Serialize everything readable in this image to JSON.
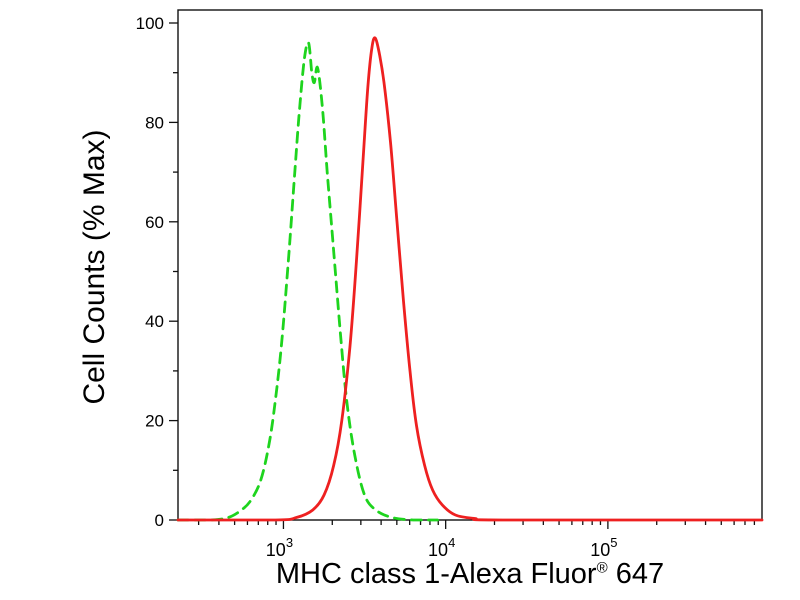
{
  "chart_data": {
    "type": "line",
    "title": "",
    "xlabel": "MHC class 1-Alexa Fluor® 647",
    "xlabel_base": "MHC class 1-Alexa Fluor",
    "xlabel_sup": "®",
    "xlabel_suffix": " 647",
    "ylabel": "Cell Counts (% Max)",
    "x_scale": "log10",
    "x_range_log": [
      2.35,
      5.95
    ],
    "ylim": [
      0,
      100
    ],
    "y_ticks": [
      0,
      20,
      40,
      60,
      80,
      100
    ],
    "y_minor_ticks": [
      10,
      30,
      50,
      70,
      90
    ],
    "x_major_ticks": [
      {
        "log": 3,
        "base": "10",
        "exp": "3"
      },
      {
        "log": 4,
        "base": "10",
        "exp": "4"
      },
      {
        "log": 5,
        "base": "10",
        "exp": "5"
      }
    ],
    "grid": false,
    "legend": "none",
    "colors": {
      "green_dashed": "#1ed41e",
      "red_solid": "#ee2020",
      "axis": "#111111"
    },
    "series": [
      {
        "id": "green-dashed-curve",
        "name": "green dashed histogram (negative/control population)",
        "color": "#1ed41e",
        "style": "dashed",
        "dash": "10 7",
        "peak_x": 1400,
        "peak_y": 96,
        "points": [
          [
            2.35,
            0
          ],
          [
            2.55,
            0
          ],
          [
            2.66,
            0.5
          ],
          [
            2.74,
            2
          ],
          [
            2.8,
            4
          ],
          [
            2.86,
            8
          ],
          [
            2.91,
            15
          ],
          [
            2.95,
            24
          ],
          [
            2.99,
            36
          ],
          [
            3.03,
            52
          ],
          [
            3.07,
            70
          ],
          [
            3.1,
            83
          ],
          [
            3.13,
            93
          ],
          [
            3.155,
            96
          ],
          [
            3.175,
            90
          ],
          [
            3.19,
            88
          ],
          [
            3.21,
            91
          ],
          [
            3.24,
            83
          ],
          [
            3.27,
            70
          ],
          [
            3.31,
            54
          ],
          [
            3.35,
            38
          ],
          [
            3.39,
            24
          ],
          [
            3.44,
            13
          ],
          [
            3.5,
            5
          ],
          [
            3.57,
            2
          ],
          [
            3.67,
            0.5
          ],
          [
            3.8,
            0
          ],
          [
            3.95,
            0
          ]
        ]
      },
      {
        "id": "red-solid-curve",
        "name": "red solid histogram (MHC class 1 stained population)",
        "color": "#ee2020",
        "style": "solid",
        "dash": "",
        "peak_x": 3500,
        "peak_y": 97,
        "points": [
          [
            2.35,
            0
          ],
          [
            2.95,
            0
          ],
          [
            3.08,
            0.5
          ],
          [
            3.18,
            2
          ],
          [
            3.25,
            5
          ],
          [
            3.31,
            11
          ],
          [
            3.36,
            20
          ],
          [
            3.41,
            35
          ],
          [
            3.45,
            52
          ],
          [
            3.49,
            72
          ],
          [
            3.52,
            87
          ],
          [
            3.545,
            95
          ],
          [
            3.565,
            97
          ],
          [
            3.59,
            94
          ],
          [
            3.62,
            88
          ],
          [
            3.66,
            76
          ],
          [
            3.7,
            60
          ],
          [
            3.74,
            44
          ],
          [
            3.78,
            30
          ],
          [
            3.82,
            19
          ],
          [
            3.87,
            11
          ],
          [
            3.92,
            6
          ],
          [
            3.98,
            3
          ],
          [
            4.06,
            1
          ],
          [
            4.18,
            0.3
          ],
          [
            4.35,
            0
          ],
          [
            5.95,
            0
          ]
        ]
      }
    ]
  }
}
